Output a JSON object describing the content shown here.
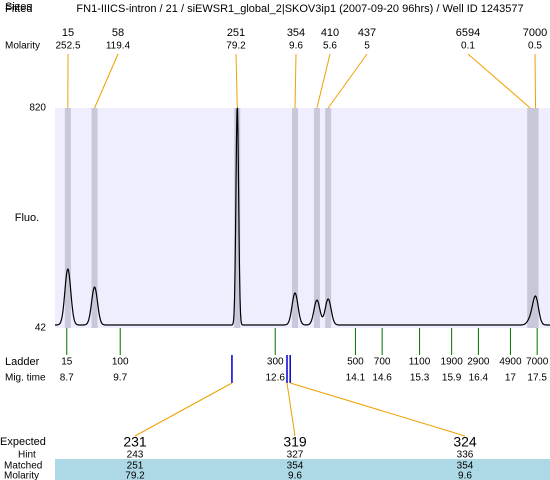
{
  "title": "FN1-IIICS-intron / 21 / siEWSR1_global_2|SKOV3ip1 (2007-09-20 96hrs) / Well ID 1243577",
  "header_labels": {
    "fitted": "Fitted",
    "sizes": "Sizes",
    "molarity": "Molarity"
  },
  "peaks": [
    {
      "size": 15,
      "molarity": 252.5,
      "time": 8.72,
      "height": 240
    },
    {
      "size": 58,
      "molarity": 119.4,
      "time": 9.22,
      "height": 176
    },
    {
      "size": 251,
      "molarity": 79.2,
      "time": 11.89,
      "height": 820
    },
    {
      "size": 354,
      "molarity": 9.6,
      "time": 12.97,
      "height": 155
    },
    {
      "size": 410,
      "molarity": 5.6,
      "time": 13.38,
      "height": 130
    },
    {
      "size": 437,
      "molarity": 5,
      "time": 13.59,
      "height": 134
    },
    {
      "size": 6594,
      "molarity": 0.1,
      "time": 17.37,
      "height": 60
    },
    {
      "size": 7000,
      "molarity": 0.5,
      "time": 17.47,
      "height": 141
    }
  ],
  "y_axis": {
    "label": "Fluo.",
    "ylim": [
      42,
      820
    ],
    "yticks": [
      820,
      42
    ]
  },
  "time_range": [
    8.48,
    17.74
  ],
  "ladder": {
    "label": "Ladder",
    "time_label": "Mig. time",
    "sizes": [
      15,
      100,
      300,
      500,
      700,
      1100,
      1900,
      2900,
      4900,
      7000
    ],
    "times": [
      8.7,
      9.7,
      12.6,
      14.1,
      14.6,
      15.3,
      15.9,
      16.4,
      17,
      17.5
    ]
  },
  "expected": {
    "labels": {
      "expected": "Expected",
      "hint": "Hint",
      "matched": "Matched",
      "molarity": "Molarity"
    },
    "items": [
      {
        "expected": 231,
        "hint": 243,
        "matched": 251,
        "molarity": 79.2,
        "time": 11.79,
        "color": "#e00000"
      },
      {
        "expected": 319,
        "hint": 327,
        "matched": 354,
        "molarity": 9.6,
        "time": 12.82,
        "color": "#e00000"
      },
      {
        "expected": 324,
        "hint": 336,
        "matched": 354,
        "molarity": 9.6,
        "time": 12.88,
        "color": "#000000"
      }
    ]
  }
}
